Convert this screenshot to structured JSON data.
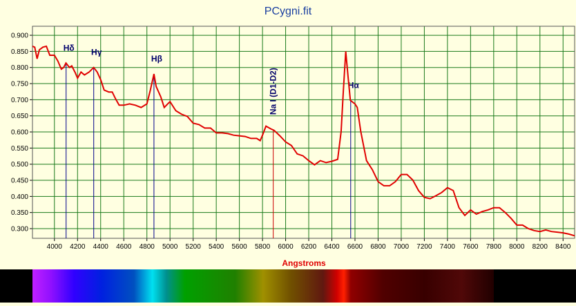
{
  "chart_data": {
    "type": "line",
    "title": "PCygni.fit",
    "x_label": "Angstroms",
    "color": "#e00000",
    "x": [
      3810,
      3830,
      3850,
      3870,
      3900,
      3930,
      3960,
      4000,
      4030,
      4060,
      4080,
      4100,
      4130,
      4150,
      4180,
      4200,
      4230,
      4260,
      4300,
      4340,
      4370,
      4400,
      4430,
      4470,
      4500,
      4530,
      4560,
      4600,
      4650,
      4700,
      4750,
      4800,
      4830,
      4861,
      4880,
      4920,
      4950,
      4980,
      5000,
      5050,
      5100,
      5150,
      5200,
      5250,
      5300,
      5350,
      5400,
      5450,
      5500,
      5550,
      5600,
      5650,
      5700,
      5750,
      5780,
      5800,
      5830,
      5870,
      5900,
      5950,
      6000,
      6050,
      6100,
      6150,
      6200,
      6250,
      6300,
      6350,
      6400,
      6450,
      6480,
      6500,
      6520,
      6540,
      6560,
      6600,
      6620,
      6650,
      6700,
      6750,
      6800,
      6850,
      6900,
      6950,
      7000,
      7050,
      7100,
      7150,
      7200,
      7250,
      7300,
      7350,
      7400,
      7450,
      7500,
      7550,
      7600,
      7650,
      7700,
      7750,
      7800,
      7850,
      7900,
      7950,
      8000,
      8050,
      8100,
      8150,
      8200,
      8250,
      8300,
      8350,
      8400,
      8450,
      8500
    ],
    "values": [
      0.866,
      0.863,
      0.827,
      0.855,
      0.863,
      0.866,
      0.838,
      0.838,
      0.82,
      0.795,
      0.8,
      0.814,
      0.8,
      0.805,
      0.784,
      0.767,
      0.786,
      0.777,
      0.786,
      0.8,
      0.786,
      0.762,
      0.73,
      0.724,
      0.724,
      0.702,
      0.683,
      0.683,
      0.687,
      0.683,
      0.676,
      0.687,
      0.73,
      0.78,
      0.741,
      0.709,
      0.676,
      0.687,
      0.694,
      0.666,
      0.655,
      0.648,
      0.627,
      0.623,
      0.612,
      0.612,
      0.597,
      0.597,
      0.595,
      0.59,
      0.588,
      0.586,
      0.58,
      0.58,
      0.573,
      0.59,
      0.618,
      0.61,
      0.605,
      0.588,
      0.569,
      0.558,
      0.532,
      0.526,
      0.511,
      0.498,
      0.511,
      0.505,
      0.509,
      0.515,
      0.601,
      0.73,
      0.85,
      0.773,
      0.698,
      0.687,
      0.676,
      0.601,
      0.511,
      0.483,
      0.446,
      0.433,
      0.433,
      0.446,
      0.468,
      0.468,
      0.451,
      0.418,
      0.397,
      0.393,
      0.402,
      0.412,
      0.427,
      0.418,
      0.365,
      0.341,
      0.358,
      0.345,
      0.353,
      0.358,
      0.365,
      0.365,
      0.35,
      0.332,
      0.311,
      0.311,
      0.3,
      0.294,
      0.291,
      0.296,
      0.291,
      0.289,
      0.287,
      0.283,
      0.278
    ],
    "xlim": [
      3810,
      8500
    ],
    "ylim": [
      0.27,
      0.928
    ],
    "xticks": [
      4000,
      4200,
      4400,
      4600,
      4800,
      5000,
      5200,
      5400,
      5600,
      5800,
      6000,
      6200,
      6400,
      6600,
      6800,
      7000,
      7200,
      7400,
      7600,
      7800,
      8000,
      8200,
      8400
    ],
    "yticks": [
      {
        "value": 0.3,
        "label": "0.300"
      },
      {
        "value": 0.35,
        "label": "0.350"
      },
      {
        "value": 0.4,
        "label": "0.400"
      },
      {
        "value": 0.45,
        "label": "0.450"
      },
      {
        "value": 0.5,
        "label": "0.500"
      },
      {
        "value": 0.55,
        "label": "0.550"
      },
      {
        "value": 0.6,
        "label": "0.600"
      },
      {
        "value": 0.65,
        "label": "0.650"
      },
      {
        "value": 0.7,
        "label": "0.700"
      },
      {
        "value": 0.75,
        "label": "0.750"
      },
      {
        "value": 0.8,
        "label": "0.800"
      },
      {
        "value": 0.85,
        "label": "0.850"
      },
      {
        "value": 0.9,
        "label": "0.900"
      }
    ],
    "grid": true,
    "annotations": [
      {
        "text": "Hδ",
        "x": 4101,
        "color": "#00008b"
      },
      {
        "text": "Hγ",
        "x": 4340,
        "color": "#00008b"
      },
      {
        "text": "Hβ",
        "x": 4861,
        "color": "#00008b"
      },
      {
        "text": "Na I (D1-D2)",
        "x": 5893,
        "color": "#cc0000"
      },
      {
        "text": "Hα",
        "x": 6563,
        "color": "#00008b"
      }
    ]
  }
}
